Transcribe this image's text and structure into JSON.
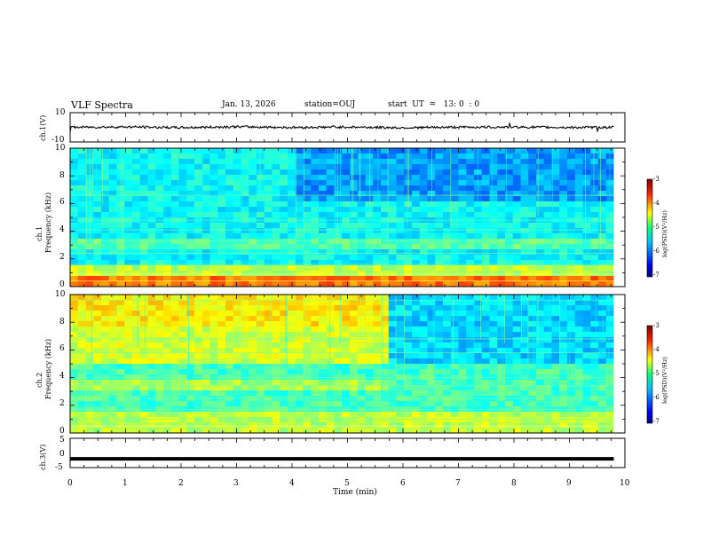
{
  "header": {
    "title": "VLF Spectra",
    "date": "Jan. 13, 2026",
    "station": "station=OUJ",
    "start": "start  UT  =   13: 0  : 0"
  },
  "colors": {
    "low": "#00007f",
    "mid": "#00ff7f",
    "high": "#7f0000",
    "trace": "#000000",
    "frame": "#000000"
  },
  "chart_data": [
    {
      "type": "line",
      "name": "ch.1 waveform",
      "ylabel": "ch.1(V)",
      "ylim": [
        -10,
        10
      ],
      "yticks": [
        "10",
        "-10"
      ],
      "x": [
        0,
        1,
        2,
        3,
        4,
        5,
        6,
        7,
        8,
        9,
        9.8
      ],
      "values": [
        0,
        0.3,
        -0.2,
        0.4,
        -0.1,
        0.2,
        -0.3,
        0.1,
        0.2,
        -0.1,
        0
      ]
    },
    {
      "type": "heatmap",
      "name": "ch.1 spectrogram",
      "ylabel_line1": "ch.1",
      "ylabel_line2": "Frequency (kHz)",
      "ylim": [
        0,
        10
      ],
      "yticks": [
        "0",
        "2",
        "4",
        "6",
        "8",
        "10"
      ],
      "colorbar_label": "log(PSD)(V²/Hz)",
      "colorbar_range": [
        -7,
        -3
      ],
      "colorbar_ticks": [
        "-3",
        "-4",
        "-5",
        "-6",
        "-7"
      ]
    },
    {
      "type": "heatmap",
      "name": "ch.2 spectrogram",
      "ylabel_line1": "ch.2",
      "ylabel_line2": "Frequency (kHz)",
      "ylim": [
        0,
        10
      ],
      "yticks": [
        "0",
        "2",
        "4",
        "6",
        "8",
        "10"
      ],
      "colorbar_label": "log(PSD)(V²/Hz)",
      "colorbar_range": [
        -7,
        -3
      ],
      "colorbar_ticks": [
        "-3",
        "-4",
        "-5",
        "-6",
        "-7"
      ]
    },
    {
      "type": "line",
      "name": "ch.3 waveform",
      "ylabel": "ch.3(V)",
      "ylim": [
        -5,
        5
      ],
      "yticks": [
        "5",
        "0",
        "-5"
      ],
      "x": [
        0,
        9.8
      ],
      "values": [
        -2,
        -2
      ]
    }
  ],
  "xaxis": {
    "label": "Time (min)",
    "range": [
      0,
      10
    ],
    "ticks": [
      "0",
      "1",
      "2",
      "3",
      "4",
      "5",
      "6",
      "7",
      "8",
      "9",
      "10"
    ]
  }
}
